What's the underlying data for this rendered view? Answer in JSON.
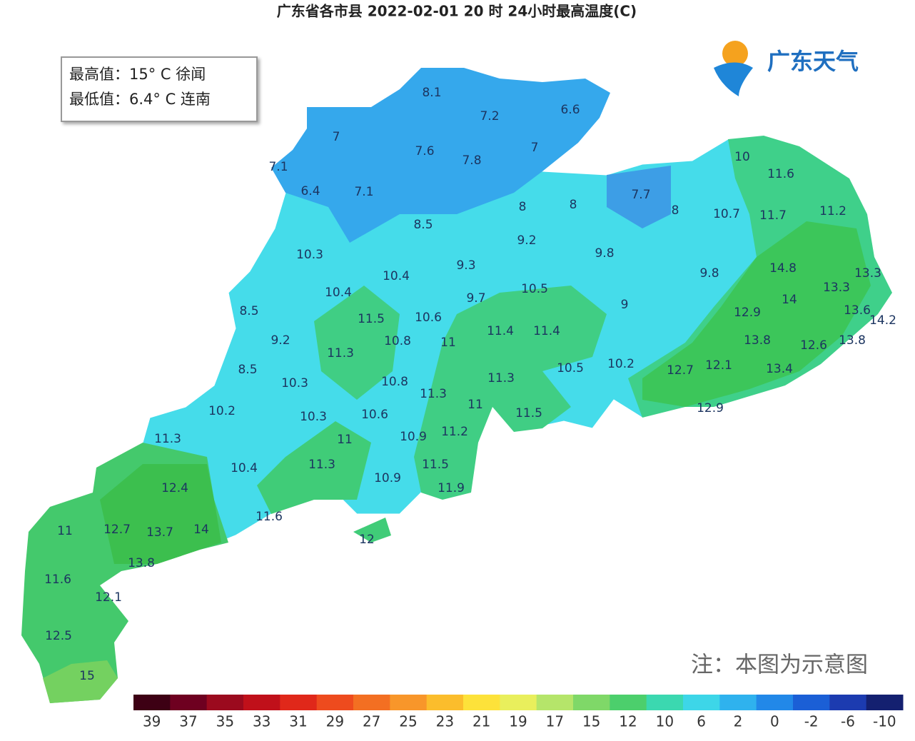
{
  "header": {
    "title": "广东省各市县 2022-02-01 20 时 24小时最高温度(C)"
  },
  "info": {
    "max": "最高值：15° C  徐闻",
    "min": "最低值：6.4° C  连南"
  },
  "logo": "广东天气",
  "note": "注：本图为示意图",
  "labels": [
    "8.1",
    "7.2",
    "6.6",
    "7",
    "7.6",
    "7.8",
    "7",
    "7.1",
    "6.4",
    "7.1",
    "10",
    "11.6",
    "8",
    "8",
    "7.7",
    "8",
    "10.7",
    "11.7",
    "11.2",
    "8.5",
    "9.2",
    "10.3",
    "9.8",
    "10.4",
    "9.3",
    "14.8",
    "13.3",
    "10.4",
    "10.5",
    "9.8",
    "13.3",
    "9.7",
    "14",
    "8.5",
    "11.5",
    "10.6",
    "9",
    "12.9",
    "13.6",
    "14.2",
    "9.2",
    "10.8",
    "11",
    "11.4",
    "11.4",
    "13.8",
    "12.6",
    "13.8",
    "11.3",
    "8.5",
    "10.3",
    "10.8",
    "11.3",
    "10.5",
    "10.2",
    "12.7",
    "12.1",
    "13.4",
    "11.3",
    "11",
    "10.2",
    "10.3",
    "10.6",
    "11.5",
    "12.9",
    "11.3",
    "11",
    "10.9",
    "11.2",
    "11.3",
    "11.5",
    "10.4",
    "10.9",
    "11.9",
    "12.4",
    "11.6",
    "11",
    "12.7",
    "13.7",
    "14",
    "12",
    "13.8",
    "11.6",
    "12.1",
    "12.5",
    "15"
  ],
  "legend": {
    "labels": [
      "39",
      "37",
      "35",
      "33",
      "31",
      "29",
      "27",
      "25",
      "23",
      "21",
      "19",
      "17",
      "15",
      "12",
      "10",
      "6",
      "2",
      "0",
      "-2",
      "-6",
      "-10"
    ],
    "colors": [
      "#3d0014",
      "#6e0020",
      "#9b0a1e",
      "#c0101a",
      "#e0281a",
      "#ee4b1e",
      "#f36f22",
      "#f8962a",
      "#fbbd2c",
      "#fde23a",
      "#e9ef5c",
      "#b5e56a",
      "#7fd868",
      "#4ccf6c",
      "#3bd8b0",
      "#3dd6e8",
      "#2fb2ee",
      "#2288e8",
      "#1b5fd6",
      "#1c3bb0",
      "#142070"
    ]
  }
}
